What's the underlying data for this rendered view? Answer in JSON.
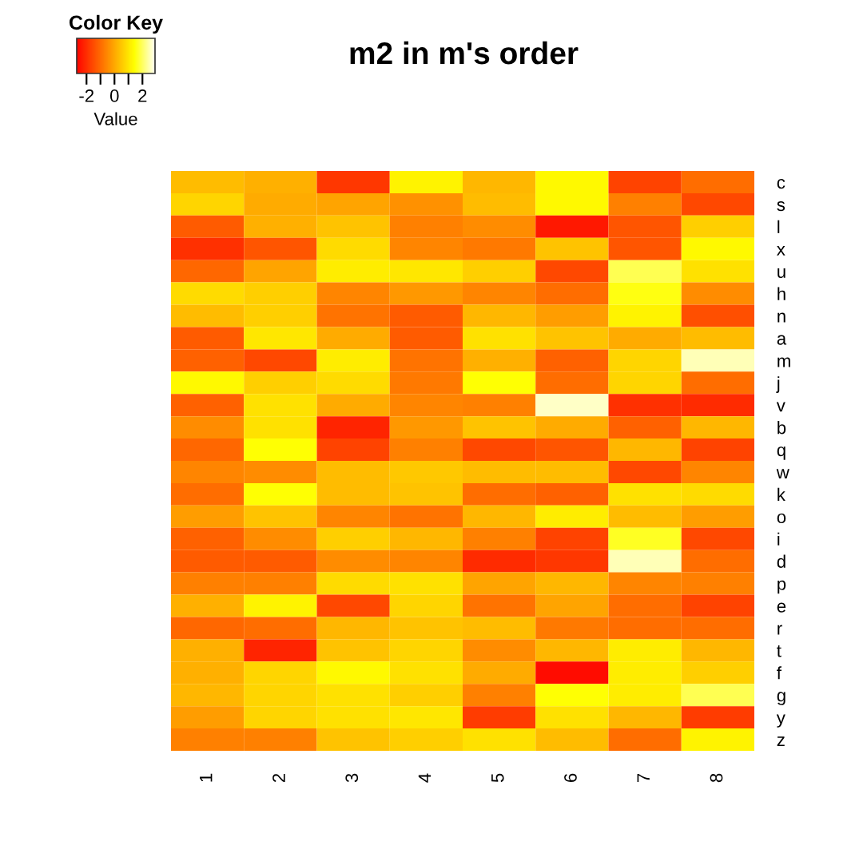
{
  "chart_data": {
    "type": "heatmap",
    "title": "m2 in m's order",
    "legend_title": "Color Key",
    "clabel": "Value",
    "categories": [
      "1",
      "2",
      "3",
      "4",
      "5",
      "6",
      "7",
      "8"
    ],
    "y_categories": [
      "c",
      "s",
      "l",
      "x",
      "u",
      "h",
      "n",
      "a",
      "m",
      "j",
      "v",
      "b",
      "q",
      "w",
      "k",
      "o",
      "i",
      "d",
      "p",
      "e",
      "r",
      "t",
      "f",
      "g",
      "y",
      "z"
    ],
    "cells": [
      [
        0.4,
        0.2,
        -1.8,
        1.3,
        0.3,
        1.4,
        -1.6,
        -0.9
      ],
      [
        0.8,
        0.1,
        0.0,
        -0.3,
        0.4,
        1.4,
        -0.6,
        -1.5
      ],
      [
        -1.2,
        0.2,
        0.5,
        -0.6,
        -0.4,
        -2.3,
        -1.3,
        0.7
      ],
      [
        -1.9,
        -1.3,
        0.9,
        -0.5,
        -0.7,
        0.5,
        -1.3,
        1.4
      ],
      [
        -1.0,
        0.0,
        1.2,
        1.1,
        0.7,
        -1.5,
        2.0,
        1.0
      ],
      [
        0.9,
        0.7,
        -0.5,
        -0.2,
        -0.5,
        -0.9,
        1.6,
        -0.4
      ],
      [
        0.4,
        0.7,
        -0.8,
        -1.2,
        0.3,
        -0.1,
        1.3,
        -1.4
      ],
      [
        -1.2,
        1.1,
        0.1,
        -1.2,
        1.0,
        0.5,
        0.1,
        0.4
      ],
      [
        -1.1,
        -1.5,
        1.2,
        -0.8,
        0.2,
        -1.1,
        0.8,
        2.6
      ],
      [
        1.4,
        0.7,
        0.9,
        -0.7,
        1.5,
        -0.9,
        0.8,
        -0.9
      ],
      [
        -1.1,
        1.0,
        0.1,
        -0.5,
        -0.6,
        2.7,
        -1.9,
        -2.0
      ],
      [
        -0.4,
        1.0,
        -2.1,
        -0.2,
        0.5,
        0.1,
        -1.1,
        0.3
      ],
      [
        -1.0,
        1.5,
        -1.6,
        -0.6,
        -1.5,
        -1.3,
        0.3,
        -1.6
      ],
      [
        -0.5,
        -0.4,
        0.4,
        0.6,
        0.4,
        0.4,
        -1.5,
        -0.5
      ],
      [
        -0.9,
        1.5,
        0.4,
        0.5,
        -0.9,
        -1.1,
        1.0,
        0.9
      ],
      [
        -0.1,
        0.5,
        -0.5,
        -0.8,
        0.3,
        1.2,
        0.4,
        -0.1
      ],
      [
        -1.1,
        -0.4,
        0.7,
        0.3,
        -0.6,
        -1.6,
        1.7,
        -1.5
      ],
      [
        -1.2,
        -1.2,
        -0.4,
        -0.5,
        -2.0,
        -1.8,
        2.6,
        -0.9
      ],
      [
        -0.6,
        -0.6,
        0.9,
        1.0,
        0.0,
        0.3,
        -0.5,
        -0.6
      ],
      [
        0.2,
        1.3,
        -1.5,
        0.8,
        -0.8,
        0.0,
        -0.9,
        -1.6
      ],
      [
        -1.0,
        -0.9,
        0.3,
        0.5,
        0.4,
        -0.7,
        -0.9,
        -0.9
      ],
      [
        0.2,
        -2.1,
        0.5,
        0.8,
        -0.4,
        0.3,
        1.2,
        0.3
      ],
      [
        0.2,
        0.8,
        1.4,
        1.0,
        0.1,
        -2.5,
        1.2,
        0.7
      ],
      [
        0.3,
        0.8,
        1.0,
        0.7,
        -0.6,
        1.5,
        1.2,
        2.0
      ],
      [
        -0.1,
        0.8,
        1.0,
        1.1,
        -1.7,
        1.0,
        0.3,
        -1.7
      ],
      [
        -0.6,
        -0.6,
        0.5,
        0.7,
        1.0,
        0.4,
        -0.9,
        1.3
      ]
    ],
    "clim": [
      -2.7,
      2.9
    ],
    "cticks": [
      -2,
      {
        "value": -1,
        "label": null
      },
      0,
      {
        "value": 1,
        "label": null
      },
      2
    ]
  }
}
